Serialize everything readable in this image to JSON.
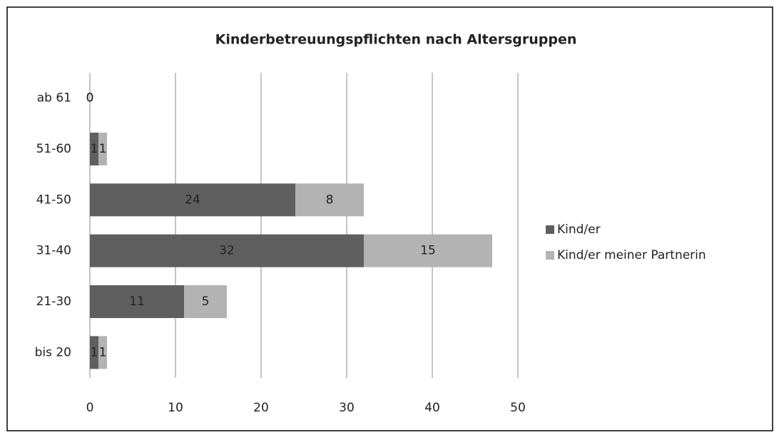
{
  "chart_data": {
    "type": "bar",
    "orientation": "horizontal",
    "stacked": true,
    "title": "Kinderbetreuungspflichten nach Altersgruppen",
    "categories": [
      "ab 61",
      "51-60",
      "41-50",
      "31-40",
      "21-30",
      "bis 20"
    ],
    "series": [
      {
        "name": "Kind/er",
        "color": "#5f5f5f",
        "values": [
          0,
          1,
          24,
          32,
          11,
          1
        ]
      },
      {
        "name": "Kind/er meiner Partnerin",
        "color": "#b3b3b3",
        "values": [
          0,
          1,
          8,
          15,
          5,
          1
        ]
      }
    ],
    "xlim": [
      0,
      50
    ],
    "xticks": [
      0,
      10,
      20,
      30,
      40,
      50
    ],
    "grid": true,
    "legend": "right"
  }
}
